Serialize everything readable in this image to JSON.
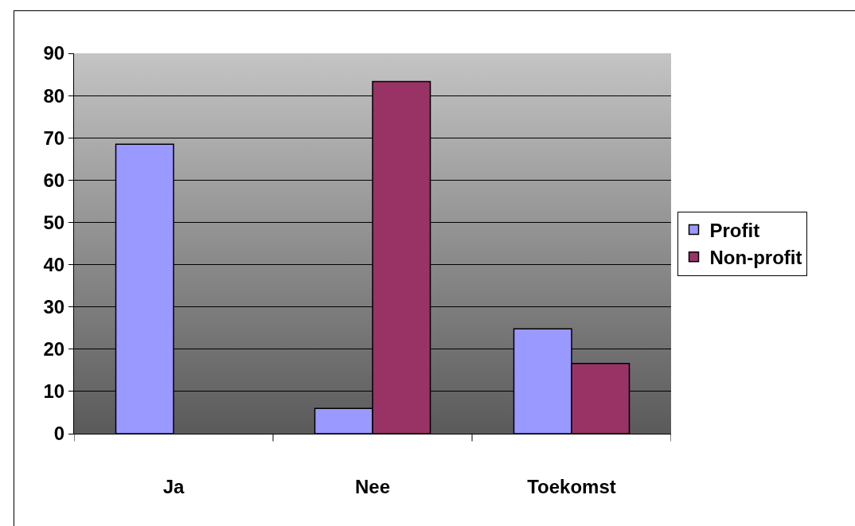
{
  "chart_data": {
    "type": "bar",
    "categories": [
      "Ja",
      "Nee",
      "Toekomst"
    ],
    "series": [
      {
        "name": "Profit",
        "color": "#9999ff",
        "values": [
          68.5,
          6,
          24.8
        ]
      },
      {
        "name": "Non-profit",
        "color": "#993366",
        "values": [
          null,
          83.3,
          16.6
        ]
      }
    ],
    "ylim": [
      0,
      90
    ],
    "yticks": [
      0,
      10,
      20,
      30,
      40,
      50,
      60,
      70,
      80,
      90
    ],
    "grid": "y",
    "legend": "right"
  }
}
